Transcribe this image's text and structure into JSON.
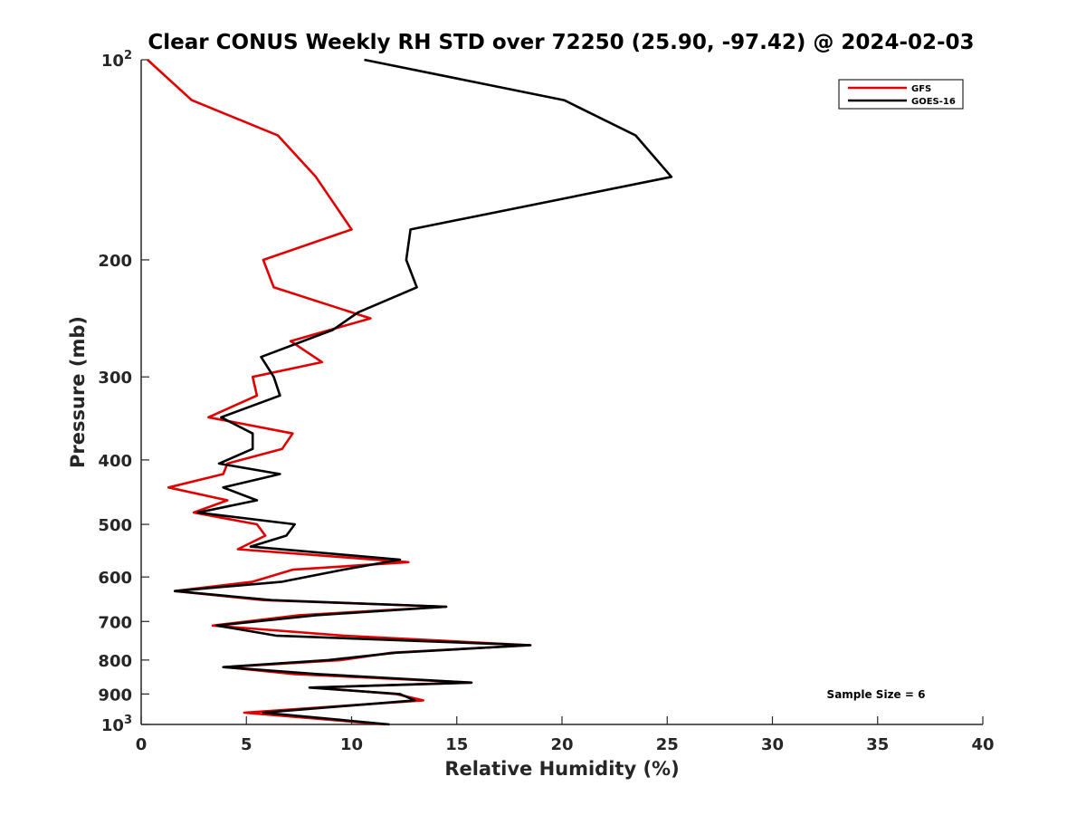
{
  "chart_data": {
    "type": "line",
    "title": "Clear CONUS Weekly RH STD over 72250 (25.90, -97.42) @ 2024-02-03",
    "xlabel": "Relative Humidity (%)",
    "ylabel": "Pressure (mb)",
    "xlim": [
      0,
      40
    ],
    "ylim": [
      100,
      1000
    ],
    "y_scale": "log",
    "y_reversed": true,
    "grid": false,
    "legend_position": "top-right",
    "annotation": "Sample Size = 6",
    "x_ticks": [
      "0",
      "5",
      "10",
      "15",
      "20",
      "25",
      "30",
      "35",
      "40"
    ],
    "y_ticks": [
      {
        "value": 100,
        "base": "10",
        "exp": "2"
      },
      {
        "value": 200,
        "label": "200"
      },
      {
        "value": 300,
        "label": "300"
      },
      {
        "value": 400,
        "label": "400"
      },
      {
        "value": 500,
        "label": "500"
      },
      {
        "value": 600,
        "label": "600"
      },
      {
        "value": 700,
        "label": "700"
      },
      {
        "value": 800,
        "label": "800"
      },
      {
        "value": 900,
        "label": "900"
      },
      {
        "value": 1000,
        "base": "10",
        "exp": "3"
      }
    ],
    "series": [
      {
        "name": "GFS",
        "color": "#e00000",
        "points": [
          [
            0.3,
            100
          ],
          [
            2.4,
            115
          ],
          [
            6.5,
            130
          ],
          [
            8.3,
            150
          ],
          [
            10.0,
            180
          ],
          [
            5.8,
            200
          ],
          [
            6.3,
            220
          ],
          [
            10.9,
            245
          ],
          [
            7.1,
            265
          ],
          [
            8.6,
            285
          ],
          [
            5.3,
            300
          ],
          [
            5.5,
            320
          ],
          [
            3.2,
            345
          ],
          [
            7.2,
            365
          ],
          [
            6.7,
            385
          ],
          [
            4.1,
            405
          ],
          [
            3.9,
            420
          ],
          [
            1.3,
            440
          ],
          [
            4.1,
            460
          ],
          [
            2.5,
            480
          ],
          [
            5.5,
            500
          ],
          [
            5.9,
            520
          ],
          [
            4.6,
            545
          ],
          [
            12.7,
            570
          ],
          [
            7.2,
            585
          ],
          [
            5.3,
            610
          ],
          [
            1.6,
            630
          ],
          [
            5.8,
            650
          ],
          [
            14.5,
            665
          ],
          [
            7.5,
            685
          ],
          [
            3.4,
            710
          ],
          [
            9.6,
            735
          ],
          [
            18.5,
            760
          ],
          [
            11.9,
            780
          ],
          [
            9.5,
            800
          ],
          [
            4.0,
            820
          ],
          [
            7.3,
            840
          ],
          [
            15.7,
            865
          ],
          [
            8.2,
            880
          ],
          [
            12.1,
            900
          ],
          [
            13.4,
            920
          ],
          [
            4.9,
            960
          ],
          [
            11.6,
            1000
          ]
        ]
      },
      {
        "name": "GOES-16",
        "color": "#000000",
        "points": [
          [
            10.6,
            100
          ],
          [
            20.1,
            115
          ],
          [
            23.5,
            130
          ],
          [
            25.2,
            150
          ],
          [
            12.8,
            180
          ],
          [
            12.6,
            200
          ],
          [
            13.1,
            220
          ],
          [
            10.3,
            240
          ],
          [
            9.1,
            255
          ],
          [
            5.7,
            280
          ],
          [
            6.3,
            300
          ],
          [
            6.6,
            320
          ],
          [
            3.8,
            345
          ],
          [
            5.3,
            365
          ],
          [
            5.3,
            385
          ],
          [
            3.7,
            405
          ],
          [
            6.6,
            420
          ],
          [
            3.9,
            440
          ],
          [
            5.5,
            460
          ],
          [
            2.7,
            480
          ],
          [
            7.3,
            500
          ],
          [
            6.9,
            520
          ],
          [
            5.2,
            540
          ],
          [
            12.3,
            565
          ],
          [
            9.6,
            585
          ],
          [
            6.7,
            610
          ],
          [
            1.6,
            630
          ],
          [
            6.2,
            650
          ],
          [
            14.5,
            665
          ],
          [
            8.3,
            685
          ],
          [
            3.6,
            710
          ],
          [
            6.4,
            735
          ],
          [
            18.5,
            760
          ],
          [
            12.1,
            780
          ],
          [
            8.9,
            800
          ],
          [
            3.9,
            820
          ],
          [
            8.4,
            840
          ],
          [
            15.7,
            865
          ],
          [
            8.0,
            880
          ],
          [
            12.3,
            900
          ],
          [
            13.0,
            920
          ],
          [
            5.8,
            960
          ],
          [
            11.8,
            1000
          ]
        ]
      }
    ]
  }
}
